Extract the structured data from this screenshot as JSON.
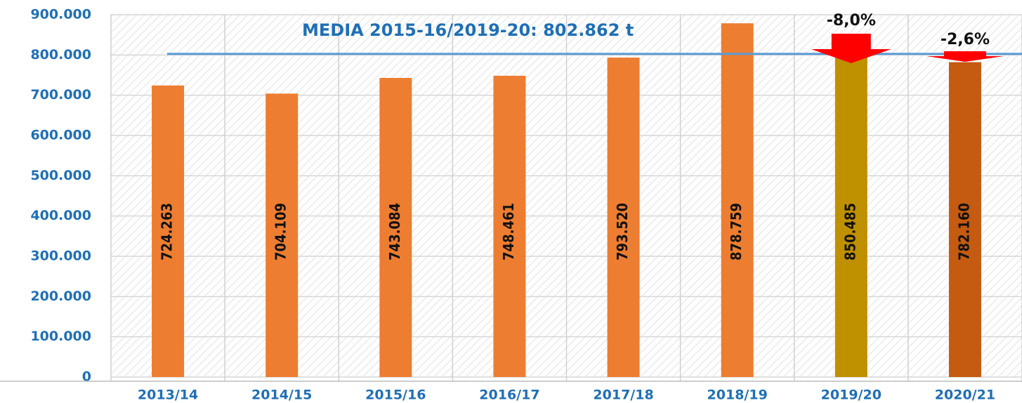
{
  "chart_data": {
    "type": "bar",
    "categories": [
      "2013/14",
      "2014/15",
      "2015/16",
      "2016/17",
      "2017/18",
      "2018/19",
      "2019/20",
      "2020/21"
    ],
    "values": [
      724263,
      704109,
      743084,
      748461,
      793520,
      878759,
      850485,
      782160
    ],
    "value_labels": [
      "724.263",
      "704.109",
      "743.084",
      "748.461",
      "793.520",
      "878.759",
      "850.485",
      "782.160"
    ],
    "colors": [
      "#ED7D31",
      "#ED7D31",
      "#ED7D31",
      "#ED7D31",
      "#ED7D31",
      "#ED7D31",
      "#BF9000",
      "#C55A11"
    ],
    "ylim": [
      0,
      900000
    ],
    "yticks": [
      0,
      {
        "value": 100000,
        "label": "100.000"
      },
      {
        "value": 200000,
        "label": "200.000"
      },
      {
        "value": 300000,
        "label": "300.000"
      },
      {
        "value": 400000,
        "label": "400.000"
      },
      {
        "value": 500000,
        "label": "500.000"
      },
      {
        "value": 600000,
        "label": "600.000"
      },
      {
        "value": 700000,
        "label": "700.000"
      },
      {
        "value": 800000,
        "label": "800.000"
      },
      {
        "value": 900000,
        "label": "900.000"
      }
    ],
    "grid": true,
    "average": 802862,
    "average_color": "#5B9BD5",
    "average_label": "MEDIA 2015-16/2019-20: 802.862 t",
    "annotations": [
      "-8,0%",
      "-2,6%"
    ]
  }
}
